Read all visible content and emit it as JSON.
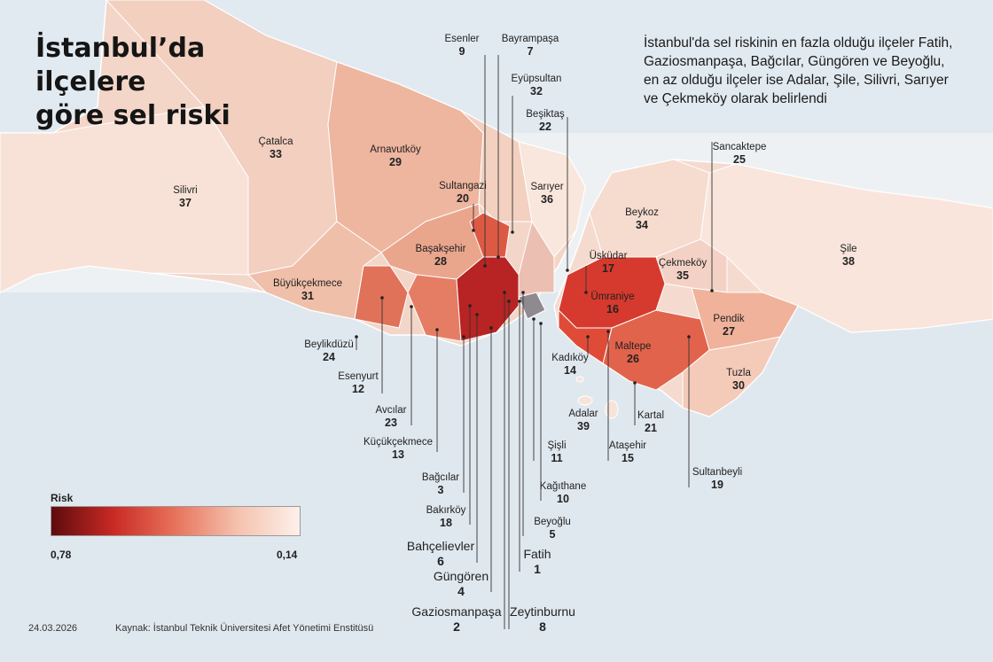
{
  "title": {
    "line1": "İstanbul’da ilçelere",
    "line2": "göre sel riski"
  },
  "subtitle": "İstanbul'da sel riskinin en fazla olduğu ilçeler Fatih, Gaziosmanpaşa, Bağcılar, Güngören ve Beyoğlu, en az olduğu ilçeler ise Adalar, Şile, Silivri, Sarıyer ve Çekmeköy olarak belirlendi",
  "legend": {
    "title": "Risk",
    "min_label": "0,78",
    "max_label": "0,14",
    "colors": [
      "#5e0b0d",
      "#c92a25",
      "#e8735b",
      "#f5c2ae",
      "#fdf0ea"
    ]
  },
  "colors": {
    "sea": "#dde6ee",
    "background": "#eef1f4",
    "leader_line": "#333333"
  },
  "districts": [
    {
      "id": "esenler",
      "name": "Esenler",
      "rank": "9"
    },
    {
      "id": "bayrampasa",
      "name": "Bayrampaşa",
      "rank": "7"
    },
    {
      "id": "eyupsultan",
      "name": "Eyüpsultan",
      "rank": "32"
    },
    {
      "id": "besiktas",
      "name": "Beşiktaş",
      "rank": "22"
    },
    {
      "id": "catalca",
      "name": "Çatalca",
      "rank": "33"
    },
    {
      "id": "arnavutkoy",
      "name": "Arnavutköy",
      "rank": "29"
    },
    {
      "id": "silivri",
      "name": "Silivri",
      "rank": "37"
    },
    {
      "id": "sultangazi",
      "name": "Sultangazi",
      "rank": "20"
    },
    {
      "id": "sariyer",
      "name": "Sarıyer",
      "rank": "36"
    },
    {
      "id": "sancaktepe",
      "name": "Sancaktepe",
      "rank": "25"
    },
    {
      "id": "beykoz",
      "name": "Beykoz",
      "rank": "34"
    },
    {
      "id": "sile",
      "name": "Şile",
      "rank": "38"
    },
    {
      "id": "basaksehir",
      "name": "Başakşehir",
      "rank": "28"
    },
    {
      "id": "buyukcekmece",
      "name": "Büyükçekmece",
      "rank": "31"
    },
    {
      "id": "uskudar",
      "name": "Üsküdar",
      "rank": "17"
    },
    {
      "id": "cekmekoy",
      "name": "Çekmeköy",
      "rank": "35"
    },
    {
      "id": "umraniye",
      "name": "Ümraniye",
      "rank": "16"
    },
    {
      "id": "pendik",
      "name": "Pendik",
      "rank": "27"
    },
    {
      "id": "beylikduzu",
      "name": "Beylikdüzü",
      "rank": "24"
    },
    {
      "id": "kadikoy",
      "name": "Kadıköy",
      "rank": "14"
    },
    {
      "id": "maltepe",
      "name": "Maltepe",
      "rank": "26"
    },
    {
      "id": "tuzla",
      "name": "Tuzla",
      "rank": "30"
    },
    {
      "id": "esenyurt",
      "name": "Esenyurt",
      "rank": "12"
    },
    {
      "id": "avcilar",
      "name": "Avcılar",
      "rank": "23"
    },
    {
      "id": "adalar",
      "name": "Adalar",
      "rank": "39"
    },
    {
      "id": "kartal",
      "name": "Kartal",
      "rank": "21"
    },
    {
      "id": "kucukcekmece",
      "name": "Küçükçekmece",
      "rank": "13"
    },
    {
      "id": "sisli",
      "name": "Şişli",
      "rank": "11"
    },
    {
      "id": "atasehir",
      "name": "Ataşehir",
      "rank": "15"
    },
    {
      "id": "sultanbeyli",
      "name": "Sultanbeyli",
      "rank": "19"
    },
    {
      "id": "bagcilar",
      "name": "Bağcılar",
      "rank": "3"
    },
    {
      "id": "kagithane",
      "name": "Kağıthane",
      "rank": "10"
    },
    {
      "id": "bakirkoy",
      "name": "Bakırköy",
      "rank": "18"
    },
    {
      "id": "beyoglu",
      "name": "Beyoğlu",
      "rank": "5"
    },
    {
      "id": "bahcelievler",
      "name": "Bahçelievler",
      "rank": "6"
    },
    {
      "id": "fatih",
      "name": "Fatih",
      "rank": "1"
    },
    {
      "id": "gungoren",
      "name": "Güngören",
      "rank": "4"
    },
    {
      "id": "gaziosmanpasa",
      "name": "Gaziosmanpaşa",
      "rank": "2"
    },
    {
      "id": "zeytinburnu",
      "name": "Zeytinburnu",
      "rank": "8"
    }
  ],
  "footer": {
    "date": "24.03.2026",
    "source": "Kaynak: İstanbul Teknik Üniversitesi Afet Yönetimi Enstitüsü"
  }
}
